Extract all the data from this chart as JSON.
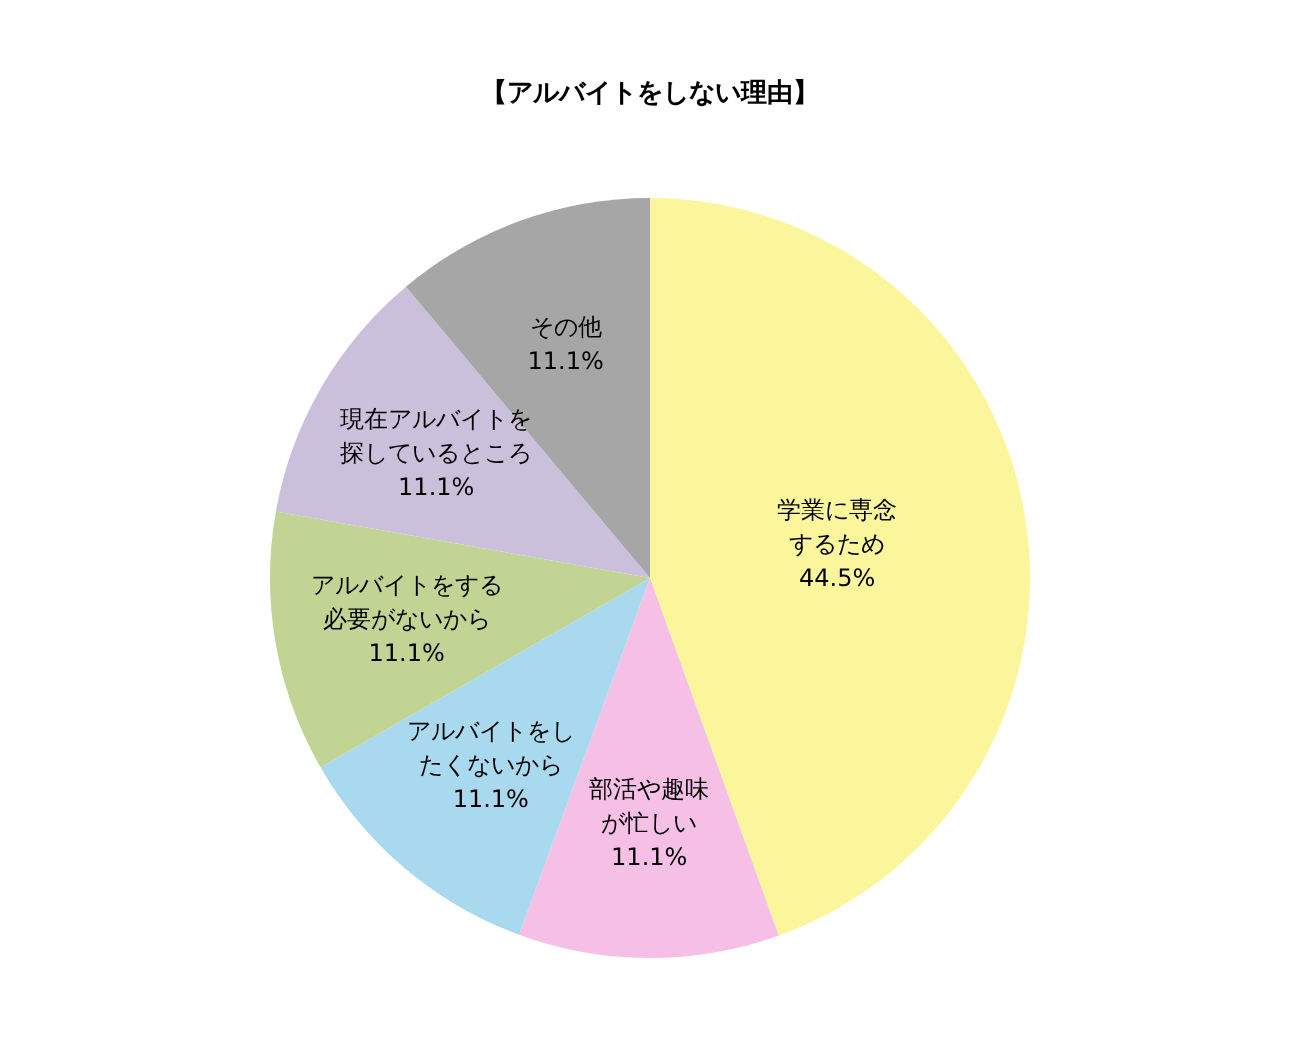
{
  "chart_data": {
    "type": "pie",
    "title": "【アルバイトをしない理由】",
    "categories": [
      "学業に専念するため",
      "部活や趣味が忙しい",
      "アルバイトをしたくないから",
      "アルバイトをする必要がないから",
      "現在アルバイトを探しているところ",
      "その他"
    ],
    "values": [
      44.5,
      11.1,
      11.1,
      11.1,
      11.1,
      11.1
    ],
    "value_labels": [
      "44.5%",
      "11.1%",
      "11.1%",
      "11.1%",
      "11.1%",
      "11.1%"
    ],
    "colors": [
      "#fbf59b",
      "#f6bfe6",
      "#a9d9ef",
      "#c1d494",
      "#cbc0dc",
      "#a6a6a6"
    ],
    "legend": false
  }
}
